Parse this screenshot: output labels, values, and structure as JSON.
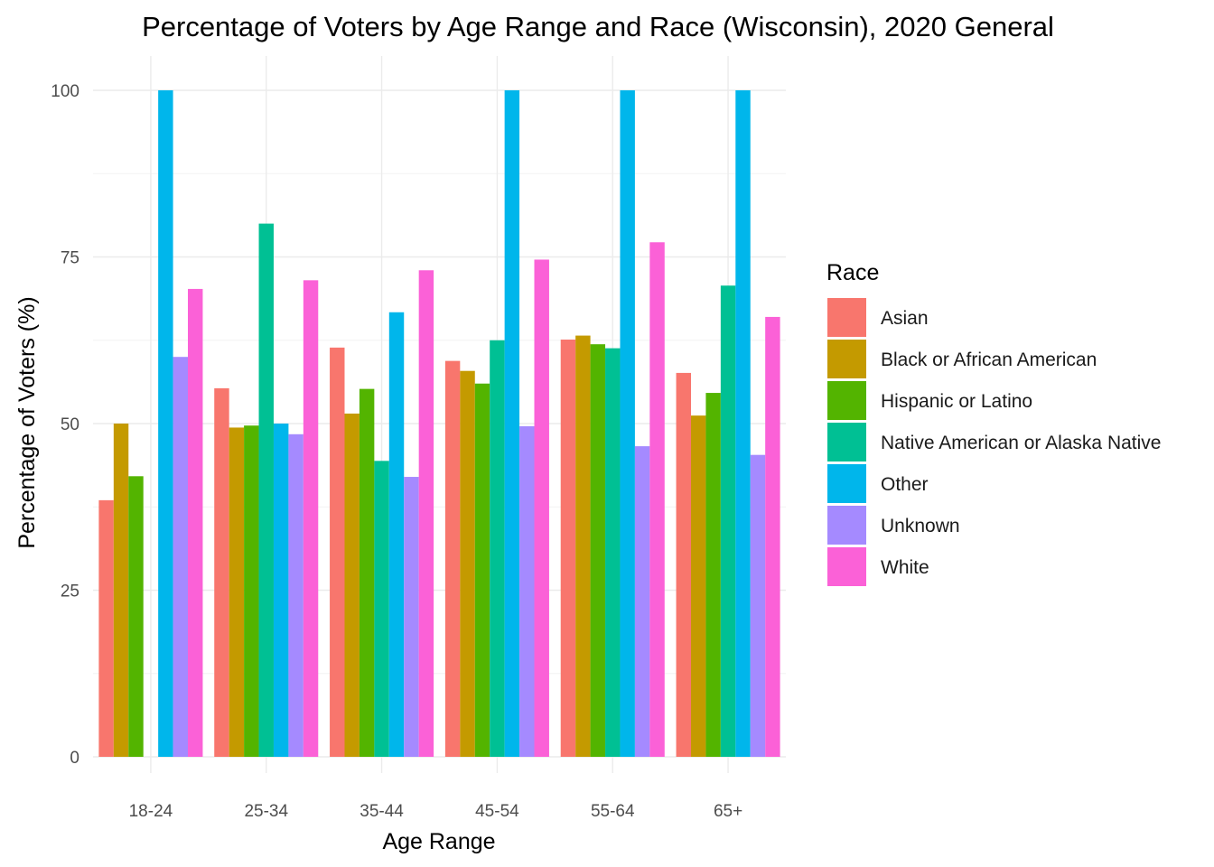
{
  "chart_data": {
    "type": "bar",
    "title": "Percentage of Voters by Age Range and Race (Wisconsin), 2020 General",
    "xlabel": "Age Range",
    "ylabel": "Percentage of Voters (%)",
    "categories": [
      "18-24",
      "25-34",
      "35-44",
      "45-54",
      "55-64",
      "65+"
    ],
    "ylim": [
      0,
      103
    ],
    "yticks": [
      0,
      25,
      50,
      75,
      100
    ],
    "grid": true,
    "legend": {
      "title": "Race",
      "placement": "right"
    },
    "series": [
      {
        "name": "Asian",
        "color": "#F8766D",
        "values": [
          38.5,
          55.3,
          61.4,
          59.4,
          62.6,
          57.6
        ]
      },
      {
        "name": "Black or African American",
        "color": "#C49A00",
        "values": [
          50.0,
          49.4,
          51.5,
          57.9,
          63.2,
          51.2
        ]
      },
      {
        "name": "Hispanic or Latino",
        "color": "#53B400",
        "values": [
          42.1,
          49.7,
          55.2,
          56.0,
          61.9,
          54.6
        ]
      },
      {
        "name": "Native American or Alaska Native",
        "color": "#00C094",
        "values": [
          0,
          80.0,
          44.4,
          62.5,
          61.3,
          70.7
        ]
      },
      {
        "name": "Other",
        "color": "#00B6EB",
        "values": [
          100,
          50.0,
          66.7,
          100,
          100,
          100
        ]
      },
      {
        "name": "Unknown",
        "color": "#A58AFF",
        "values": [
          60.0,
          48.4,
          42.0,
          49.6,
          46.6,
          45.3
        ]
      },
      {
        "name": "White",
        "color": "#FB61D7",
        "values": [
          70.2,
          71.5,
          73.0,
          74.6,
          77.2,
          66.0
        ]
      }
    ]
  }
}
